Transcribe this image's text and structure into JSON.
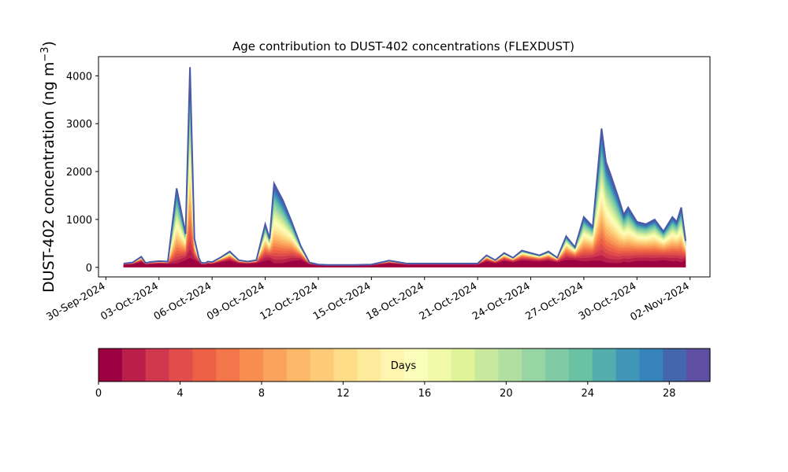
{
  "chart_data": {
    "type": "area",
    "title": "Age contribution to DUST-402 concentrations (FLEXDUST)",
    "ylabel": "DUST-402 concentration (ng m⁻³)",
    "ylabel_main": "DUST-402 concentration (ng m",
    "ylabel_sup": "−3",
    "ylabel_close": ")",
    "xlabel": "",
    "ylim": [
      -200,
      4400
    ],
    "xlim": [
      "2024-09-29T14:00",
      "2024-11-03T03:00"
    ],
    "yticks": [
      0,
      1000,
      2000,
      3000,
      4000
    ],
    "xticks": [
      "30-Sep-2024",
      "03-Oct-2024",
      "06-Oct-2024",
      "09-Oct-2024",
      "12-Oct-2024",
      "15-Oct-2024",
      "18-Oct-2024",
      "21-Oct-2024",
      "24-Oct-2024",
      "27-Oct-2024",
      "30-Oct-2024",
      "02-Nov-2024"
    ],
    "xtick_dates": [
      "2024-09-30",
      "2024-10-03",
      "2024-10-06",
      "2024-10-09",
      "2024-10-12",
      "2024-10-15",
      "2024-10-18",
      "2024-10-21",
      "2024-10-24",
      "2024-10-27",
      "2024-10-30",
      "2024-11-02"
    ],
    "series_note": "stacked contributions by particle age in days, 0 (bottom) to 30 (top); values below give the total concentration",
    "total": {
      "x": [
        "2024-10-01T00:00",
        "2024-10-01T12:00",
        "2024-10-02T00:00",
        "2024-10-02T06:00",
        "2024-10-02T12:00",
        "2024-10-03T00:00",
        "2024-10-03T12:00",
        "2024-10-04T00:00",
        "2024-10-04T12:00",
        "2024-10-04T18:00",
        "2024-10-05T00:00",
        "2024-10-05T06:00",
        "2024-10-05T09:00",
        "2024-10-05T12:00",
        "2024-10-05T15:00",
        "2024-10-05T18:00",
        "2024-10-06T00:00",
        "2024-10-06T12:00",
        "2024-10-07T00:00",
        "2024-10-07T12:00",
        "2024-10-08T00:00",
        "2024-10-08T12:00",
        "2024-10-09T00:00",
        "2024-10-09T06:00",
        "2024-10-09T12:00",
        "2024-10-10T00:00",
        "2024-10-10T12:00",
        "2024-10-11T00:00",
        "2024-10-11T12:00",
        "2024-10-12T00:00",
        "2024-10-12T12:00",
        "2024-10-13T00:00",
        "2024-10-14T00:00",
        "2024-10-15T00:00",
        "2024-10-16T00:00",
        "2024-10-17T00:00",
        "2024-10-18T00:00",
        "2024-10-18T06:00",
        "2024-10-19T00:00",
        "2024-10-20T00:00",
        "2024-10-21T00:00",
        "2024-10-21T12:00",
        "2024-10-22T00:00",
        "2024-10-22T12:00",
        "2024-10-23T00:00",
        "2024-10-23T12:00",
        "2024-10-24T00:00",
        "2024-10-24T12:00",
        "2024-10-25T00:00",
        "2024-10-25T12:00",
        "2024-10-26T00:00",
        "2024-10-26T12:00",
        "2024-10-27T00:00",
        "2024-10-27T12:00",
        "2024-10-28T00:00",
        "2024-10-28T06:00",
        "2024-10-28T12:00",
        "2024-10-29T00:00",
        "2024-10-29T06:00",
        "2024-10-29T12:00",
        "2024-10-30T00:00",
        "2024-10-30T12:00",
        "2024-10-31T00:00",
        "2024-10-31T12:00",
        "2024-11-01T00:00",
        "2024-11-01T06:00",
        "2024-11-01T12:00",
        "2024-11-01T18:00"
      ],
      "y": [
        80,
        100,
        220,
        90,
        110,
        130,
        120,
        1650,
        700,
        4180,
        600,
        200,
        100,
        90,
        90,
        120,
        110,
        210,
        330,
        150,
        120,
        150,
        900,
        600,
        1750,
        1400,
        950,
        450,
        100,
        60,
        50,
        50,
        50,
        60,
        140,
        80,
        80,
        80,
        80,
        80,
        80,
        250,
        150,
        300,
        200,
        350,
        300,
        250,
        330,
        200,
        650,
        420,
        1050,
        850,
        2900,
        2200,
        1950,
        1400,
        1100,
        1250,
        950,
        900,
        1000,
        750,
        1050,
        950,
        1250,
        550
      ]
    }
  },
  "colorbar": {
    "label": "Days",
    "ticks": [
      "0",
      "4",
      "8",
      "12",
      "16",
      "20",
      "24",
      "28"
    ],
    "tick_values": [
      0,
      4,
      8,
      12,
      16,
      20,
      24,
      28
    ],
    "vmin": 0,
    "vmax": 30,
    "colors": [
      "#9e0142",
      "#b91f48",
      "#d0384e",
      "#e14d4a",
      "#ec6046",
      "#f3764a",
      "#f88d52",
      "#fba35c",
      "#fdb768",
      "#fdca78",
      "#fedc88",
      "#feea9b",
      "#fff5ae",
      "#fbfdba",
      "#f0f9a7",
      "#e1f399",
      "#c7e89e",
      "#b1dfa2",
      "#98d5a4",
      "#80cba4",
      "#68c2a3",
      "#53adad",
      "#4096b7",
      "#3682ba",
      "#4366ad",
      "#5e4fa2"
    ]
  },
  "top_line_color": "#4a5aa8"
}
